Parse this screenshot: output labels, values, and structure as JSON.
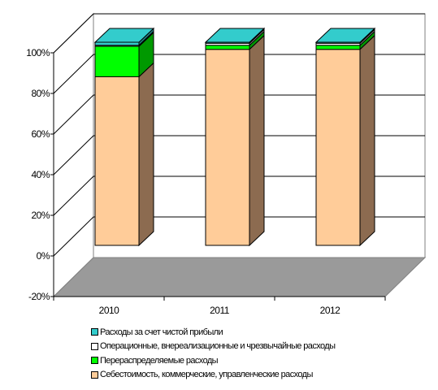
{
  "chart_data": {
    "type": "bar",
    "stacked": true,
    "percent": true,
    "three_d": true,
    "categories": [
      "2010",
      "2011",
      "2012"
    ],
    "y_ticks": [
      "-20%",
      "0%",
      "20%",
      "40%",
      "60%",
      "80%",
      "100%"
    ],
    "ylim": [
      -20,
      100
    ],
    "grid": true,
    "legend_position": "bottom",
    "series": [
      {
        "name": "Себестоимость, коммерческие, управленческие расходы",
        "color": "#FFCC99",
        "side_color": "#8C6B50",
        "values": [
          83,
          96.5,
          96.5
        ]
      },
      {
        "name": "Перераспределяемые расходы",
        "color": "#00FF00",
        "side_color": "#009900",
        "values": [
          15,
          2,
          2
        ]
      },
      {
        "name": "Операционные, внереализационные и чрезвычайные расходы",
        "color": "#FFFFFF",
        "side_color": "#999999",
        "values": [
          0.5,
          1,
          1
        ]
      },
      {
        "name": "Расходы за счет чистой прибыли",
        "color": "#33CCCC",
        "side_color": "#1F8080",
        "values": [
          1.5,
          0.5,
          0.5
        ]
      }
    ]
  }
}
